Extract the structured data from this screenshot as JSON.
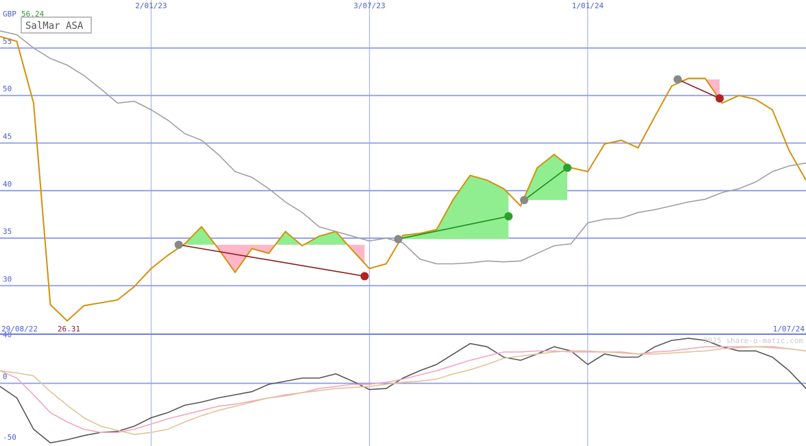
{
  "chart_data": [
    {
      "type": "line",
      "title": "SalMar ASA",
      "currency": "GBP",
      "high": 56.24,
      "low": 26.31,
      "x": [
        "29/08/22",
        "12/09/22",
        "26/09/22",
        "10/10/22",
        "24/10/22",
        "7/11/22",
        "21/11/22",
        "5/12/22",
        "19/12/22",
        "2/01/23",
        "16/01/23",
        "30/01/23",
        "13/02/23",
        "27/02/23",
        "13/03/23",
        "27/03/23",
        "10/04/23",
        "24/04/23",
        "8/05/23",
        "22/05/23",
        "5/06/23",
        "19/06/23",
        "3/07/23",
        "17/07/23",
        "31/07/23",
        "14/08/23",
        "28/08/23",
        "11/09/23",
        "25/09/23",
        "9/10/23",
        "23/10/23",
        "6/11/23",
        "20/11/23",
        "4/12/23",
        "18/12/23",
        "1/01/24",
        "15/01/24",
        "29/01/24",
        "12/02/24",
        "26/02/24",
        "11/03/24",
        "25/03/24",
        "8/04/24",
        "22/04/24",
        "6/05/24",
        "20/05/24",
        "3/06/24",
        "17/06/24",
        "1/07/24"
      ],
      "xlim": [
        "29/08/22",
        "1/07/24"
      ],
      "xticks": [
        "2/01/23",
        "3/07/23",
        "1/01/24"
      ],
      "ylim": [
        24.9,
        60.05
      ],
      "yticks": [
        30,
        35,
        40,
        45,
        50,
        55
      ],
      "grid": true,
      "series": [
        {
          "name": "SalMar ASA",
          "color": "#d4900a",
          "values": [
            56.2,
            55.7,
            49.2,
            28.0,
            26.3,
            27.9,
            28.2,
            28.5,
            29.9,
            31.8,
            33.2,
            34.4,
            36.2,
            33.9,
            31.4,
            33.9,
            33.4,
            35.7,
            34.2,
            35.2,
            35.7,
            33.7,
            31.8,
            32.3,
            35.3,
            35.5,
            35.9,
            39.1,
            41.6,
            41.1,
            40.2,
            38.4,
            42.4,
            43.8,
            42.4,
            42.0,
            44.9,
            45.3,
            44.5,
            47.8,
            51.0,
            51.8,
            51.8,
            49.2,
            50.0,
            49.6,
            48.5,
            44.2,
            41.1
          ]
        },
        {
          "color": "#a0a0a0",
          "values": [
            56.8,
            56.4,
            55,
            53.9,
            53.2,
            52.1,
            50.7,
            49.2,
            49.4,
            48.5,
            47.4,
            46,
            45.3,
            43.8,
            42.0,
            41.4,
            40.2,
            38.8,
            37.7,
            36.2,
            35.7,
            35.2,
            34.7,
            35,
            34.5,
            32.8,
            32.3,
            32.3,
            32.4,
            32.6,
            32.5,
            32.6,
            33.4,
            34.2,
            34.4,
            36.6,
            37.0,
            37.1,
            37.7,
            38.0,
            38.4,
            38.8,
            39.1,
            39.8,
            40.2,
            40.9,
            42.0,
            42.6,
            42.9
          ]
        }
      ],
      "trend_lines": [
        {
          "x": [
            "25/01/23",
            "29/06/23"
          ],
          "y": [
            34.3,
            31.0
          ],
          "color": "#8b1a1a",
          "end_color": "#b22222"
        },
        {
          "x": [
            "27/07/23",
            "27/10/23"
          ],
          "y": [
            34.9,
            37.3
          ],
          "color": "#1e8c1e",
          "end_color": "#2ca02c"
        },
        {
          "x": [
            "9/11/23",
            "15/12/23"
          ],
          "y": [
            39.0,
            42.4
          ],
          "color": "#1e8c1e",
          "end_color": "#2ca02c"
        },
        {
          "x": [
            "16/03/24",
            "20/04/24"
          ],
          "y": [
            51.7,
            49.7
          ],
          "color": "#8b1a1a",
          "end_color": "#b22222"
        }
      ]
    },
    {
      "type": "line",
      "credit": "2025 share-o-matic.com",
      "ylim": [
        -60,
        47
      ],
      "yticks": [
        -50,
        0,
        40
      ],
      "series": [
        {
          "color": "#555555",
          "values": [
            -3,
            -14,
            -44,
            -57,
            -54,
            -50,
            -47,
            -46,
            -41,
            -33,
            -28,
            -21,
            -18,
            -14,
            -11,
            -8,
            -1,
            2,
            5,
            5,
            9,
            2,
            -6,
            -5,
            5,
            12,
            18,
            28,
            38,
            35,
            25,
            22,
            28,
            35,
            31,
            18,
            28,
            25,
            25,
            35,
            41,
            43,
            41,
            35,
            31,
            31,
            25,
            12,
            -5
          ]
        },
        {
          "color": "#f4a6c0",
          "values": [
            12,
            5,
            -11,
            -28,
            -37,
            -44,
            -47,
            -47,
            -44,
            -39,
            -34,
            -30,
            -26,
            -22,
            -20,
            -17,
            -14,
            -11,
            -9,
            -5,
            -3,
            -1,
            -1,
            1,
            4,
            8,
            12,
            17,
            22,
            26,
            30,
            30,
            31,
            31,
            30,
            30,
            30,
            30,
            28,
            30,
            31,
            33,
            35,
            35,
            35,
            35,
            35,
            33,
            31
          ]
        },
        {
          "color": "#e0c49a",
          "values": [
            12,
            10,
            7,
            -8,
            -21,
            -33,
            -41,
            -45,
            -49,
            -47,
            -44,
            -37,
            -31,
            -26,
            -22,
            -18,
            -14,
            -12,
            -9,
            -7,
            -5,
            -4,
            -3,
            -1,
            1,
            2,
            4,
            9,
            13,
            18,
            24,
            26,
            28,
            30,
            31,
            31,
            30,
            29,
            28,
            28,
            29,
            30,
            31,
            33,
            34,
            35,
            34,
            33,
            31
          ]
        }
      ]
    }
  ]
}
